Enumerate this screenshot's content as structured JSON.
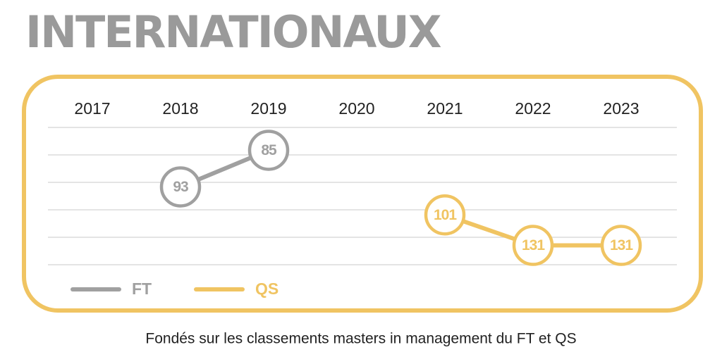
{
  "chart_data": {
    "type": "line",
    "title": "INTERNATIONAUX",
    "caption": "Fondés sur les classements masters in management du FT et QS",
    "categories": [
      "2017",
      "2018",
      "2019",
      "2020",
      "2021",
      "2022",
      "2023"
    ],
    "ylim": [
      110,
      80
    ],
    "y2lim": [
      150,
      15
    ],
    "series": [
      {
        "name": "FT",
        "color": "#a0a0a0",
        "values": [
          null,
          93,
          85,
          null,
          null,
          null,
          null
        ]
      },
      {
        "name": "QS",
        "color": "#f0c462",
        "axis": "y2",
        "values": [
          null,
          null,
          null,
          null,
          101,
          131,
          131
        ]
      }
    ]
  }
}
